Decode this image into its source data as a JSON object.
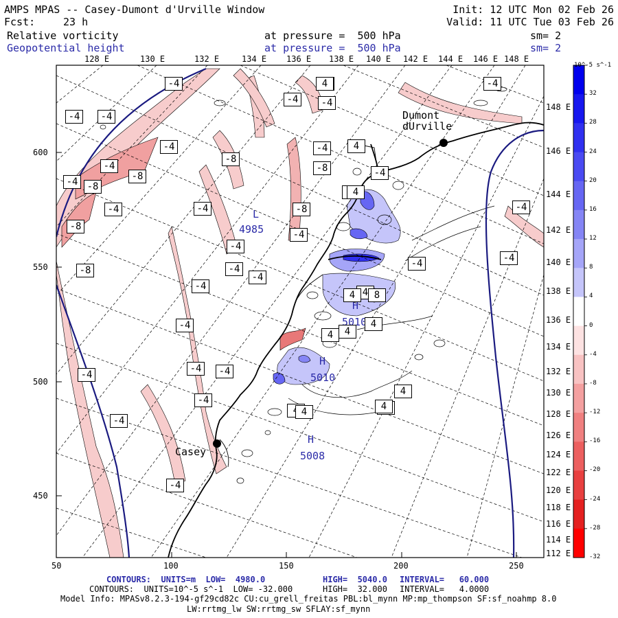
{
  "header": {
    "title": "AMPS MPAS -- Casey-Dumont d'Urville Window",
    "init": "Init: 12 UTC Mon 02 Feb 26",
    "fcst_label": "Fcst:",
    "fcst_value": "23 h",
    "valid": "Valid: 11 UTC Tue 03 Feb 26",
    "field1_name": "Relative vorticity",
    "field1_pressure": "at pressure =  500 hPa",
    "field1_sm": "sm= 2",
    "field2_name": "Geopotential height",
    "field2_pressure": "at pressure =  500 hPa",
    "field2_sm": "sm= 2"
  },
  "top_lon_labels": [
    "128 E",
    "130 E",
    "132 E",
    "134 E",
    "136 E",
    "138 E",
    "140 E",
    "142 E",
    "144 E",
    "146 E",
    "148 E"
  ],
  "right_lon_labels": [
    "148 E",
    "146 E",
    "144 E",
    "142 E",
    "140 E",
    "138 E",
    "136 E",
    "134 E",
    "132 E",
    "130 E",
    "128 E",
    "126 E",
    "124 E",
    "122 E",
    "120 E",
    "118 E",
    "116 E",
    "114 E",
    "112 E"
  ],
  "x_axis": [
    "50",
    "100",
    "150",
    "200",
    "250"
  ],
  "y_axis": [
    "600",
    "550",
    "500",
    "450"
  ],
  "colorbar": {
    "unit_label": "10^-5 s^-1",
    "labels": [
      "32",
      "28",
      "24",
      "20",
      "16",
      "12",
      "8",
      "4",
      "0",
      "-4",
      "-8",
      "-12",
      "-16",
      "-20",
      "-24",
      "-28",
      "-32"
    ],
    "colors": [
      "#0000ee",
      "#1717ef",
      "#3030f0",
      "#4a4af2",
      "#6666f3",
      "#8585f5",
      "#a5a5f8",
      "#c5c5fa",
      "#ffffff",
      "#fde2e2",
      "#f8c2c2",
      "#f4a0a0",
      "#f08080",
      "#ec5f5f",
      "#e84040",
      "#e42020",
      "#ff0000"
    ]
  },
  "places": [
    {
      "name": "Dumont\ndUrville"
    },
    {
      "name": "Casey"
    }
  ],
  "height_labels": [
    {
      "h": "L",
      "v": "4985"
    },
    {
      "h": "H",
      "v": "5010"
    },
    {
      "h": "H",
      "v": "5010"
    },
    {
      "h": "H",
      "v": "5008"
    }
  ],
  "vort_labels": [
    "-4",
    "-4",
    "-4",
    "-4",
    "-4",
    "-4",
    "-4",
    "-4",
    "-8",
    "-8",
    "-8",
    "-8",
    "-4",
    "-4",
    "-8",
    "-4",
    "-8",
    "-4",
    "-4",
    "-8",
    "-4",
    "-4",
    "-4",
    "-4",
    "-4",
    "-4",
    "-4",
    "-4",
    "-4",
    "-4",
    "-4",
    "-4",
    "-4",
    "-4",
    "-4",
    "-4",
    "-4",
    "4",
    "4",
    "4",
    "4",
    "4",
    "4",
    "4",
    "8",
    "4",
    "4",
    "4",
    "4",
    "4",
    "4"
  ],
  "footer": {
    "line1_a": "CONTOURS:  UNITS=m  LOW=  4980.0",
    "line1_b": "HIGH=  5040.0",
    "line1_c": "INTERVAL=   60.000",
    "line2_a": "CONTOURS:  UNITS=10^-5 s^-1  LOW= -32.000",
    "line2_b": "HIGH=  32.000",
    "line2_c": "INTERVAL=   4.0000",
    "line3": "Model Info: MPASv8.2.3-194-gf29cd82c CU:cu_grell_freitas PBL:bl_mynn MP:mp_thompson SF:sf_noahmp 8.0",
    "line4": "LW:rrtmg_lw SW:rrtmg_sw SFLAY:sf_mynn"
  }
}
